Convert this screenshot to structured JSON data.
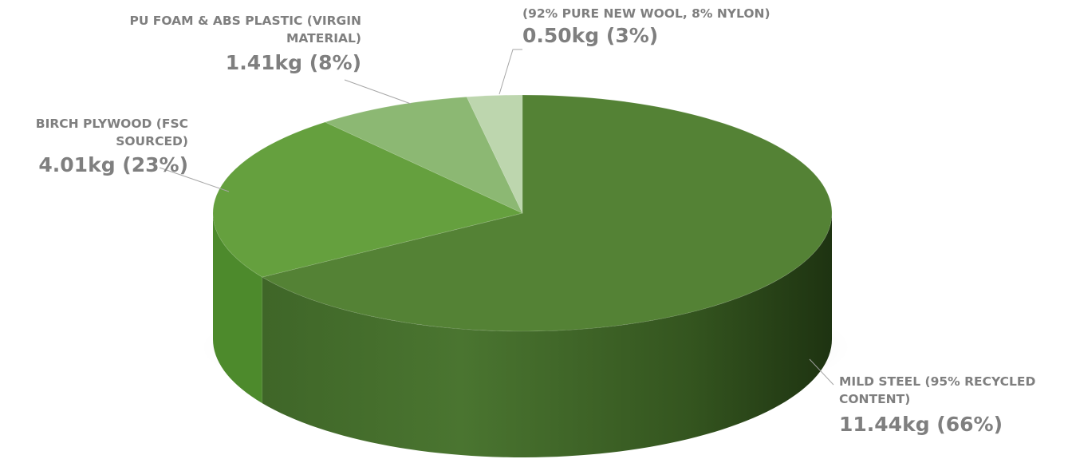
{
  "chart_data": {
    "type": "pie",
    "title": "",
    "style": "3d",
    "unit": "kg",
    "slices": [
      {
        "name_lines": [
          "MILD STEEL (95% RECYCLED",
          "CONTENT)"
        ],
        "value": 11.44,
        "percent": 66,
        "value_label": "11.44kg (66%)",
        "color": "#548235"
      },
      {
        "name_lines": [
          "BIRCH PLYWOOD (FSC",
          "SOURCED)"
        ],
        "value": 4.01,
        "percent": 23,
        "value_label": "4.01kg (23%)",
        "color": "#65A03E"
      },
      {
        "name_lines": [
          "PU FOAM & ABS PLASTIC (VIRGIN",
          "MATERIAL)"
        ],
        "value": 1.41,
        "percent": 8,
        "value_label": "1.41kg (8%)",
        "color": "#8CB873"
      },
      {
        "name_lines": [
          "(92% PURE NEW WOOL, 8% NYLON)"
        ],
        "value": 0.5,
        "percent": 3,
        "value_label": "0.50kg (3%)",
        "color": "#BDD6AE"
      }
    ],
    "text_color": "#7F7F7F",
    "legend": "none"
  }
}
